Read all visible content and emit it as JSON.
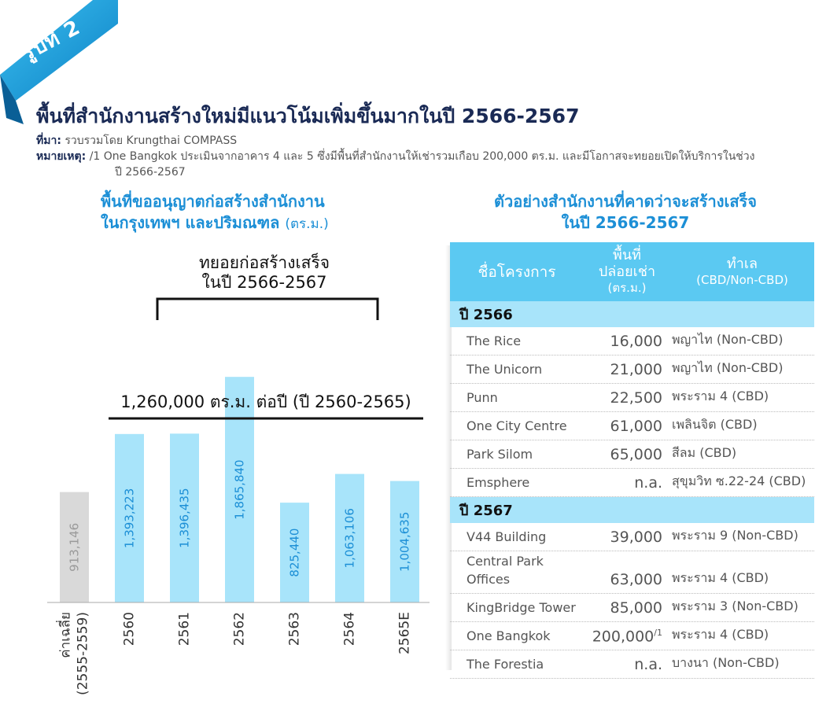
{
  "figure_label": "รูปที่ 2",
  "title": "พื้นที่สำนักงานสร้างใหม่มีแนวโน้มเพิ่มขึ้นมากในปี 2566-2567",
  "source_label": "ที่มา:",
  "source_text": "รวบรวมโดย Krungthai COMPASS",
  "note_label": "หมายเหตุ:",
  "note_text": "/1 One Bangkok ประเมินจากอาคาร 4 และ 5 ซึ่งมีพื้นที่สำนักงานให้เช่ารวมเกือบ 200,000 ตร.ม. และมีโอกาสจะทยอยเปิดให้บริการในช่วง",
  "note_text2": "ปี 2566-2567",
  "chart_title_line1": "พื้นที่ขออนุญาตก่อสร้างสำนักงาน",
  "chart_title_line2": "ในกรุงเทพฯ และปริมณฑล",
  "chart_title_unit": "(ตร.ม.)",
  "colors": {
    "accent": "#1c8fd6",
    "bar": "#a8e4fa",
    "bar_avg": "#d9d9d9",
    "bar_label": "#1c8fd6",
    "avg_label": "#9a9a9a",
    "header": "#5bc9f2",
    "year_row": "#a8e4fa"
  },
  "chart_data": {
    "type": "bar",
    "categories": [
      "ค่าเฉลี่ย\n(2555-2559)",
      "2560",
      "2561",
      "2562",
      "2563",
      "2564",
      "2565E"
    ],
    "values": [
      913146,
      1393223,
      1396435,
      1865840,
      825440,
      1063106,
      1004635
    ],
    "value_labels": [
      "913,146",
      "1,393,223",
      "1,396,435",
      "1,865,840",
      "825,440",
      "1,063,106",
      "1,004,635"
    ],
    "ylim": [
      0,
      2100000
    ],
    "grid": false,
    "reference_line": {
      "value": 1260000,
      "label": "1,260,000 ตร.ม. ต่อปี (ปี 2560-2565)"
    },
    "bracket": {
      "from_index": 1,
      "to_index": 5,
      "label_line1": "ทยอยก่อสร้างเสร็จ",
      "label_line2": "ในปี 2566-2567"
    }
  },
  "table": {
    "heading_line1": "ตัวอย่างสำนักงานที่คาดว่าจะสร้างเสร็จ",
    "heading_line2": "ในปี 2566-2567",
    "headers": {
      "name": "ชื่อโครงการ",
      "area_line1": "พื้นที่",
      "area_line2": "ปล่อยเช่า",
      "area_unit": "(ตร.ม.)",
      "location": "ทำเล",
      "location_sub": "(CBD/Non-CBD)"
    },
    "groups": [
      {
        "year": "ปี 2566",
        "rows": [
          {
            "name": "The Rice",
            "area": "16,000",
            "location": "พญาไท (Non-CBD)"
          },
          {
            "name": "The Unicorn",
            "area": "21,000",
            "location": "พญาไท (Non-CBD)"
          },
          {
            "name": "Punn",
            "area": "22,500",
            "location": "พระราม 4 (CBD)"
          },
          {
            "name": "One City Centre",
            "area": "61,000",
            "location": "เพลินจิต (CBD)"
          },
          {
            "name": "Park Silom",
            "area": "65,000",
            "location": "สีลม (CBD)"
          },
          {
            "name": "Emsphere",
            "area": "n.a.",
            "location": "สุขุมวิท ซ.22-24 (CBD)"
          }
        ]
      },
      {
        "year": "ปี 2567",
        "rows": [
          {
            "name": "V44 Building",
            "area": "39,000",
            "location": "พระราม 9 (Non-CBD)"
          },
          {
            "name": "Central Park Offices",
            "area": "63,000",
            "location": "พระราม 4 (CBD)"
          },
          {
            "name": "KingBridge Tower",
            "area": "85,000",
            "location": "พระราม 3 (Non-CBD)"
          },
          {
            "name": "One Bangkok",
            "area": "200,000",
            "area_note": "/1",
            "location": "พระราม 4 (CBD)"
          },
          {
            "name": "The Forestia",
            "area": "n.a.",
            "location": "บางนา (Non-CBD)"
          }
        ]
      }
    ]
  }
}
